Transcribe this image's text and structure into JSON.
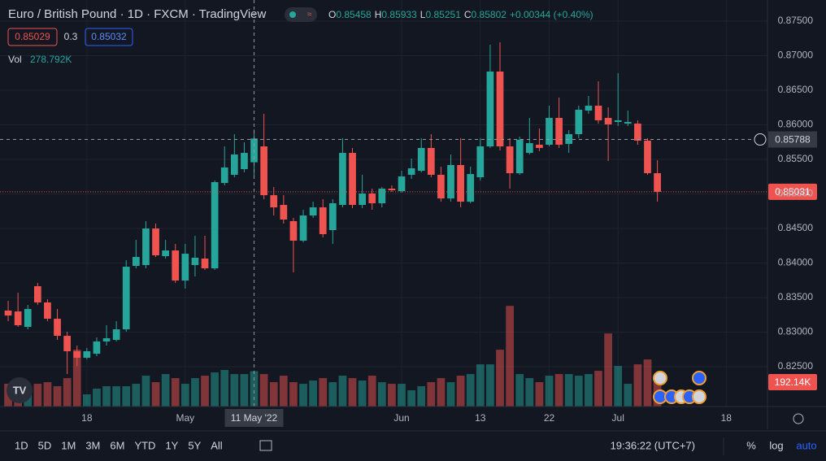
{
  "header": {
    "symbol": "Euro / British Pound · 1D · FXCM · TradingView",
    "ohlc_keys": [
      "O",
      "H",
      "L",
      "C"
    ],
    "change": "+0.00344 (+0.40%)",
    "bid": "0.85029",
    "spread": "0.3",
    "ask": "0.85032",
    "volume_name": "Vol",
    "volume_value": "278.792K"
  },
  "toolbar": {
    "ranges": [
      "1D",
      "5D",
      "1M",
      "3M",
      "6M",
      "YTD",
      "1Y",
      "5Y",
      "All"
    ],
    "clock": "19:36:22 (UTC+7)",
    "percent": "%",
    "log": "log",
    "auto": "auto"
  },
  "chart_data": {
    "type": "candlestick",
    "up_color": "#26a69a",
    "down_color": "#ef5350",
    "grid": true,
    "xlim": [
      -0.83,
      77.19
    ],
    "xticks": [
      {
        "value": 8,
        "label": "18"
      },
      {
        "value": 18,
        "label": "May"
      },
      {
        "value": 40,
        "label": "Jun"
      },
      {
        "value": 48,
        "label": "13"
      },
      {
        "value": 55,
        "label": "22"
      },
      {
        "value": 62,
        "label": "Jul"
      },
      {
        "value": 73,
        "label": "18"
      }
    ],
    "ylim": [
      0.81924,
      0.87806
    ],
    "yticks": [
      {
        "value": 0.875,
        "label": "0.87500"
      },
      {
        "value": 0.87,
        "label": "0.87000"
      },
      {
        "value": 0.865,
        "label": "0.86500"
      },
      {
        "value": 0.86,
        "label": "0.86000"
      },
      {
        "value": 0.855,
        "label": "0.85500"
      },
      {
        "value": 0.85,
        "label": "0.85000"
      },
      {
        "value": 0.845,
        "label": "0.84500"
      },
      {
        "value": 0.84,
        "label": "0.84000"
      },
      {
        "value": 0.835,
        "label": "0.83500"
      },
      {
        "value": 0.83,
        "label": "0.83000"
      },
      {
        "value": 0.825,
        "label": "0.82500"
      }
    ],
    "open": [
      0.83312,
      0.833,
      0.83077,
      0.83665,
      0.8343,
      0.83194,
      0.82947,
      0.82724,
      0.8263,
      0.82688,
      0.82865,
      0.82888,
      0.83041,
      0.83959,
      0.83971,
      0.845,
      0.841,
      0.84182,
      0.83747,
      0.83971,
      0.84065,
      0.83924,
      0.85159,
      0.85277,
      0.85359,
      0.85458,
      0.85688,
      0.84982,
      0.84841,
      0.84606,
      0.84324,
      0.84688,
      0.84806,
      0.84477,
      0.84841,
      0.85594,
      0.84841,
      0.85006,
      0.84865,
      0.85077,
      0.85041,
      0.85277,
      0.85335,
      0.85665,
      0.85277,
      0.84935,
      0.85418,
      0.84888,
      0.85241,
      0.85688,
      0.86771,
      0.85688,
      0.853,
      0.85594,
      0.85712,
      0.85712,
      0.861,
      0.85724,
      0.85865,
      0.86206,
      0.86277,
      0.861,
      0.86041,
      0.86018,
      0.86018,
      0.85771,
      0.853
    ],
    "high": [
      0.83453,
      0.83571,
      0.83394,
      0.83712,
      0.83477,
      0.83335,
      0.83006,
      0.82806,
      0.82771,
      0.82924,
      0.831,
      0.83159,
      0.84041,
      0.84335,
      0.84606,
      0.84571,
      0.84335,
      0.84277,
      0.84277,
      0.84394,
      0.84394,
      0.85194,
      0.85688,
      0.85865,
      0.85747,
      0.85933,
      0.86159,
      0.851,
      0.84982,
      0.84653,
      0.84771,
      0.84888,
      0.84924,
      0.84924,
      0.85806,
      0.85665,
      0.85277,
      0.85077,
      0.851,
      0.85124,
      0.85335,
      0.85512,
      0.85806,
      0.85865,
      0.85394,
      0.85571,
      0.85806,
      0.85394,
      0.85806,
      0.87159,
      0.87194,
      0.85806,
      0.8583,
      0.861,
      0.85947,
      0.86277,
      0.86394,
      0.85924,
      0.86277,
      0.86418,
      0.8663,
      0.86253,
      0.86747,
      0.86206,
      0.86065,
      0.85806,
      0.85488
    ],
    "low": [
      0.83159,
      0.83077,
      0.83041,
      0.83394,
      0.83159,
      0.82888,
      0.82394,
      0.82512,
      0.82606,
      0.82653,
      0.82806,
      0.82865,
      0.83006,
      0.83924,
      0.83924,
      0.84088,
      0.84065,
      0.83712,
      0.8363,
      0.83806,
      0.839,
      0.839,
      0.85124,
      0.85241,
      0.85312,
      0.85251,
      0.84924,
      0.84688,
      0.84571,
      0.83865,
      0.843,
      0.84653,
      0.84371,
      0.84277,
      0.84806,
      0.84794,
      0.84794,
      0.84771,
      0.84806,
      0.8503,
      0.85018,
      0.85218,
      0.85312,
      0.85241,
      0.84888,
      0.84888,
      0.84806,
      0.84865,
      0.85194,
      0.85665,
      0.8563,
      0.85077,
      0.85277,
      0.85571,
      0.85618,
      0.85688,
      0.85665,
      0.85594,
      0.85806,
      0.86159,
      0.86018,
      0.85477,
      0.85983,
      0.85983,
      0.85712,
      0.85277,
      0.84888
    ],
    "close": [
      0.83241,
      0.831,
      0.83335,
      0.8343,
      0.83194,
      0.82947,
      0.82724,
      0.8263,
      0.82724,
      0.82865,
      0.82912,
      0.83041,
      0.83947,
      0.84088,
      0.845,
      0.84112,
      0.84182,
      0.83747,
      0.84135,
      0.84077,
      0.83924,
      0.85171,
      0.85383,
      0.85571,
      0.85594,
      0.85802,
      0.84982,
      0.84806,
      0.8463,
      0.84324,
      0.84688,
      0.84806,
      0.84418,
      0.84865,
      0.85594,
      0.84841,
      0.85006,
      0.84865,
      0.85077,
      0.85053,
      0.85253,
      0.85371,
      0.85665,
      0.85277,
      0.84935,
      0.85418,
      0.84888,
      0.85288,
      0.85688,
      0.86771,
      0.85688,
      0.853,
      0.85783,
      0.85735,
      0.85665,
      0.861,
      0.85712,
      0.85865,
      0.86218,
      0.86277,
      0.86065,
      0.86006,
      0.86065,
      0.86041,
      0.85771,
      0.853,
      0.85031
    ],
    "volume": {
      "values": [
        179.2,
        192,
        160,
        179.2,
        192,
        160,
        224,
        448,
        96,
        140.8,
        160,
        160,
        160,
        179.2,
        243.2,
        192,
        256,
        224,
        179.2,
        224,
        243.2,
        268.8,
        288,
        256,
        256,
        278.792,
        256,
        192,
        243.2,
        192,
        179.2,
        204.8,
        224,
        192,
        243.2,
        224,
        204.8,
        243.2,
        192,
        179.2,
        179.2,
        128,
        160,
        192,
        224,
        192,
        243.2,
        256,
        332.8,
        332.8,
        448,
        793.6,
        256,
        224,
        192,
        243.2,
        256,
        256,
        243.2,
        256,
        281.6,
        576,
        320,
        179.2,
        332.8,
        371.2,
        192.14
      ],
      "ylim": [
        0,
        1000
      ],
      "last_label": "192.14K"
    },
    "crosshair": {
      "x": {
        "value": 25,
        "label": "11 May '22"
      },
      "y": {
        "value": 0.85788,
        "label": "0.85788"
      }
    },
    "last_price": {
      "value": 0.85031,
      "label": "0.85031"
    }
  }
}
